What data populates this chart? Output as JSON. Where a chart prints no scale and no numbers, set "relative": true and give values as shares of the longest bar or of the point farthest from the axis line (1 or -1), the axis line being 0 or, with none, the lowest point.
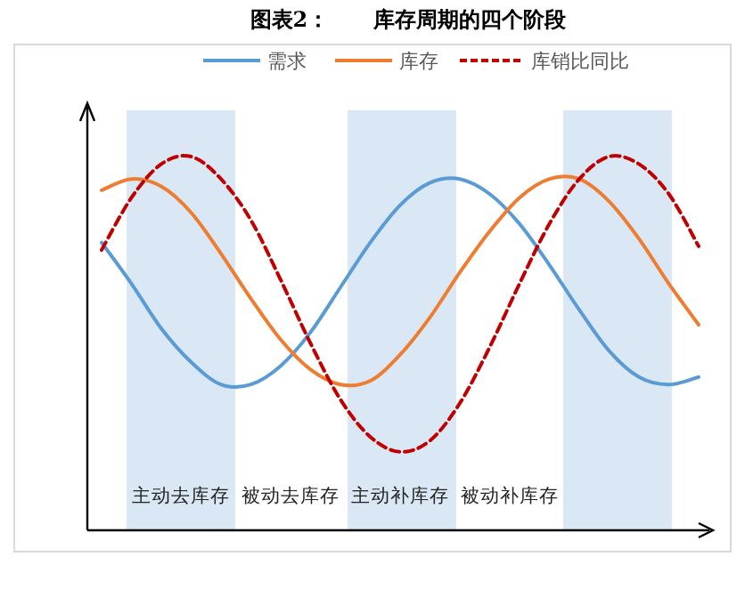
{
  "chart_data": {
    "type": "line",
    "title": "图表2：      库存周期的四个阶段",
    "relative": true,
    "legend": "top",
    "categories": [
      null,
      null,
      null,
      null,
      null,
      null,
      null,
      null,
      null,
      null,
      null,
      null,
      null,
      null,
      null,
      null,
      null,
      null,
      null,
      null,
      null
    ],
    "series": [
      {
        "name": "需求",
        "color": "#5b9bd5",
        "values": [
          0.77,
          0.66,
          0.54,
          0.45,
          0.39,
          0.39,
          0.44,
          0.53,
          0.65,
          0.77,
          0.87,
          0.93,
          0.94,
          0.9,
          0.82,
          0.71,
          0.59,
          0.48,
          0.41,
          0.39,
          0.41
        ]
      },
      {
        "name": "库存",
        "color": "#ed7d31",
        "values": [
          0.91,
          0.94,
          0.92,
          0.85,
          0.74,
          0.62,
          0.51,
          0.43,
          0.39,
          0.4,
          0.47,
          0.57,
          0.69,
          0.8,
          0.89,
          0.94,
          0.94,
          0.88,
          0.78,
          0.66,
          0.55
        ]
      },
      {
        "name": "库销比同比",
        "color": "#c00000",
        "line_style": "dashed",
        "values": [
          0.75,
          0.89,
          0.98,
          1.0,
          0.94,
          0.83,
          0.67,
          0.5,
          0.35,
          0.25,
          0.21,
          0.24,
          0.34,
          0.49,
          0.66,
          0.82,
          0.94,
          1.0,
          0.98,
          0.9,
          0.76
        ]
      }
    ],
    "annotations": [
      "主动去库存",
      "被动去库存",
      "主动补库存",
      "被动补库存"
    ]
  }
}
